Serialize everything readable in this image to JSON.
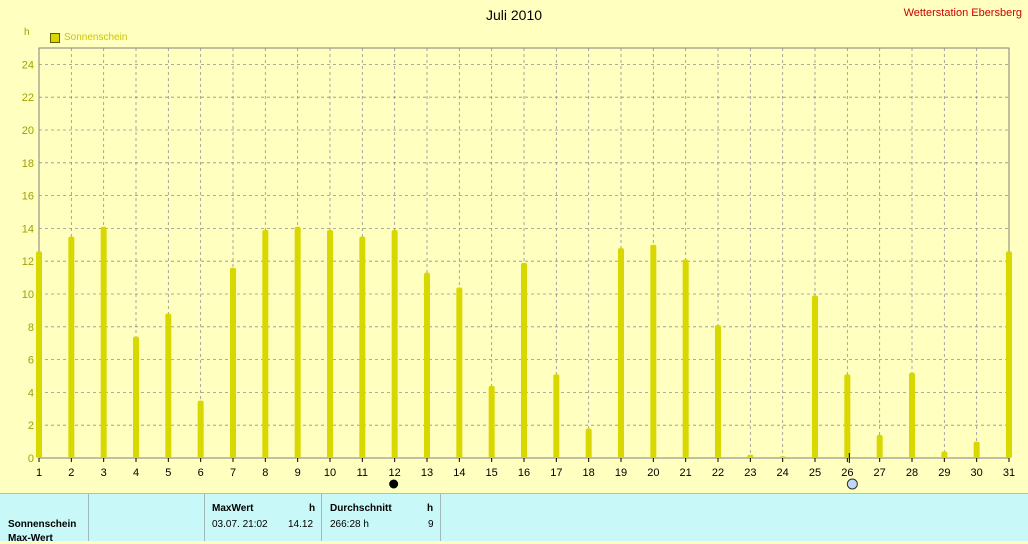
{
  "header": {
    "title": "Juli 2010",
    "station": "Wetterstation Ebersberg",
    "unit": "h",
    "legend_label": "Sonnenschein"
  },
  "colors": {
    "background": "#ffffc0",
    "bar": "#d8d800",
    "grid": "#909090",
    "station_text": "#d00000",
    "table_bg": "#c8f8f8"
  },
  "chart_data": {
    "type": "bar",
    "title": "Juli 2010",
    "ylabel": "h",
    "xlabel": "",
    "ylim": [
      0,
      25
    ],
    "yticks": [
      0,
      2,
      4,
      6,
      8,
      10,
      12,
      14,
      16,
      18,
      20,
      22,
      24
    ],
    "categories": [
      "1",
      "2",
      "3",
      "4",
      "5",
      "6",
      "7",
      "8",
      "9",
      "10",
      "11",
      "12",
      "13",
      "14",
      "15",
      "16",
      "17",
      "18",
      "19",
      "20",
      "21",
      "22",
      "23",
      "24",
      "25",
      "26",
      "27",
      "28",
      "29",
      "30",
      "31"
    ],
    "series": [
      {
        "name": "Sonnenschein",
        "values": [
          12.6,
          13.5,
          14.1,
          7.4,
          8.8,
          3.5,
          11.6,
          13.9,
          14.1,
          13.9,
          13.5,
          13.9,
          11.3,
          10.4,
          4.4,
          11.9,
          5.1,
          1.8,
          12.8,
          13.0,
          12.1,
          8.1,
          0.2,
          0.1,
          9.9,
          5.1,
          1.4,
          5.2,
          0.4,
          1.0,
          12.6
        ]
      }
    ],
    "grid": true,
    "legend": "top-left",
    "markers": [
      {
        "day": 12,
        "kind": "filled"
      },
      {
        "day": 26,
        "kind": "open"
      }
    ]
  },
  "table": {
    "row_label": "Sonnenschein",
    "row_label_2": "Max-Wert",
    "max_header": "MaxWert",
    "max_unit": "h",
    "max_date": "03.07.  21:02",
    "max_value": "14.12",
    "avg_header": "Durchschnitt",
    "avg_unit": "h",
    "avg_total": "266:28 h",
    "avg_value": "9"
  }
}
